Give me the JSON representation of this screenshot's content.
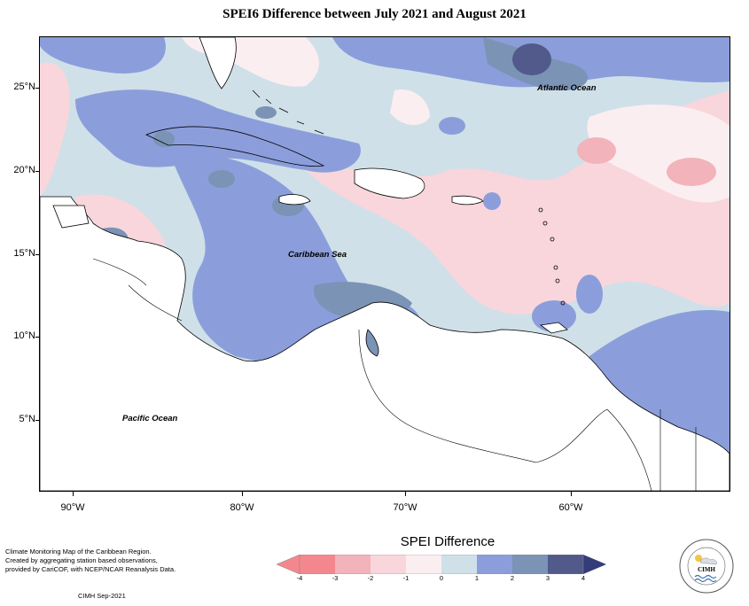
{
  "title": "SPEI6 Difference between July 2021 and August 2021",
  "map": {
    "lat_labels": [
      "25°N",
      "20°N",
      "15°N",
      "10°N",
      "5°N"
    ],
    "lon_labels": [
      "90°W",
      "80°W",
      "70°W",
      "60°W"
    ],
    "ocean_labels": {
      "atlantic": "Atlantic Ocean",
      "caribbean": "Caribbean Sea",
      "pacific": "Pacific Ocean"
    }
  },
  "legend": {
    "title": "SPEI Difference",
    "ticks": [
      "-4",
      "-3",
      "-2",
      "-1",
      "0",
      "1",
      "2",
      "3",
      "4"
    ],
    "colors": [
      "#f4878e",
      "#f2b3bb",
      "#f9d6dc",
      "#fbeef0",
      "#cfe0e8",
      "#8b9edb",
      "#7b93b5",
      "#515a8a",
      "#343c7a"
    ]
  },
  "credit": {
    "lines": [
      "Climate Monitoring Map of the Caribbean Region.",
      "Created by aggregating station based observations,",
      "provided by CariCOF, with NCEP/NCAR Reanalysis Data."
    ],
    "date": "CIMH Sep-2021"
  },
  "logo": {
    "text": "CIMH"
  }
}
